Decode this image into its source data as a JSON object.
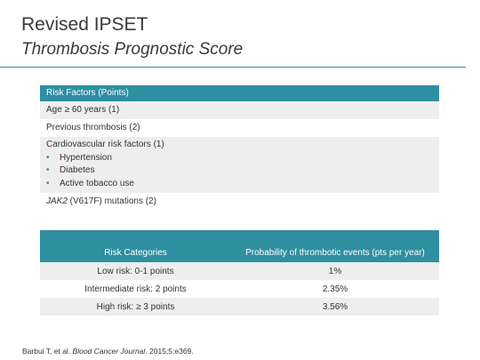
{
  "slide": {
    "title": "Revised IPSET",
    "subtitle": "Thrombosis Prognostic Score"
  },
  "risk_factors": {
    "header": "Risk Factors (Points)",
    "age": "Age ≥ 60 years (1)",
    "previous_thrombosis": "Previous thrombosis (2)",
    "cardiovascular": {
      "label": "Cardiovascular risk factors (1)",
      "items": [
        "Hypertension",
        "Diabetes",
        "Active tobacco use"
      ]
    },
    "jak2_gene": "JAK2",
    "jak2_rest": " (V617F) mutations (2)"
  },
  "risk_categories": {
    "headers": [
      "Risk Categories",
      "Probability of thrombotic events (pts per year)"
    ],
    "rows": [
      {
        "category": "Low risk: 0-1 points",
        "probability": "1%"
      },
      {
        "category": "Intermediate risk: 2 points",
        "probability": "2.35%"
      },
      {
        "category": "High risk: ≥ 3 points",
        "probability": "3.56%"
      }
    ]
  },
  "citation": {
    "authors": "Barbui T, et al. ",
    "journal": "Blood Cancer Journal",
    "details": ". 2015;5:e369."
  },
  "colors": {
    "accent": "#2e8fa1",
    "row_shade": "#eeeeee"
  }
}
